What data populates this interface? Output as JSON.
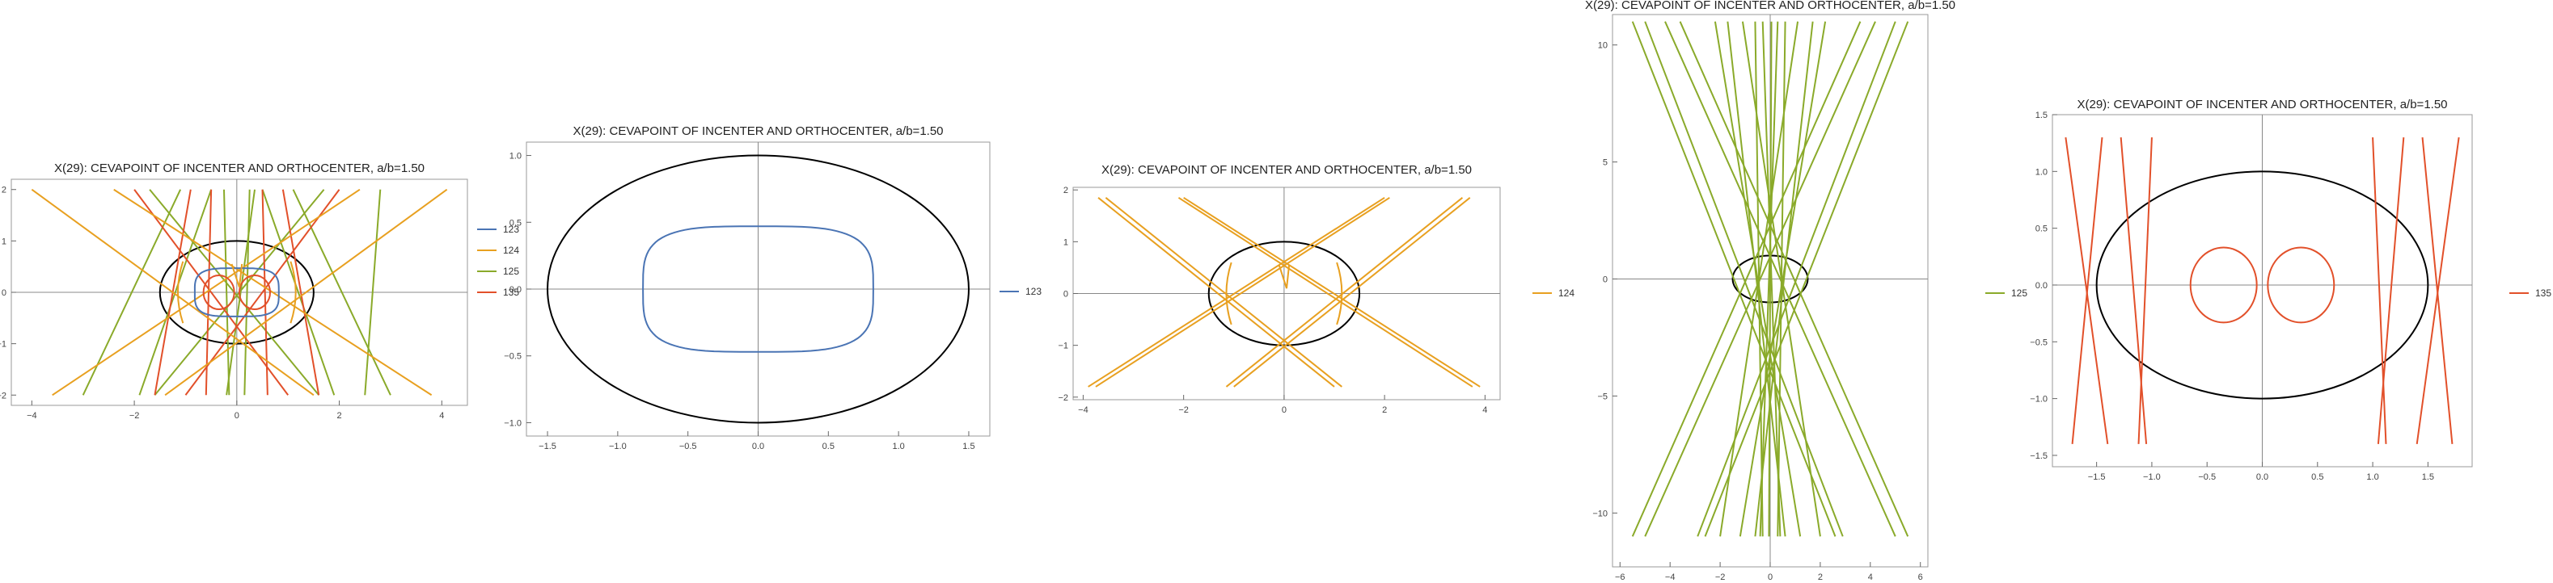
{
  "colors": {
    "s123": "#4a74b4",
    "s124": "#e8a020",
    "s125": "#8aaa2a",
    "s135": "#e2502a",
    "ellipse": "#000000",
    "frame": "#999999"
  },
  "chart_data": [
    {
      "type": "line",
      "title": "X(29): CEVAPOINT OF INCENTER AND ORTHOCENTER, a/b=1.50",
      "xlim": [
        -4.4,
        4.5
      ],
      "ylim": [
        -2.2,
        2.2
      ],
      "xticks": [
        -4,
        -2,
        0,
        2,
        4
      ],
      "yticks": [
        -2,
        -1,
        0,
        1,
        2
      ],
      "legend": [
        "123",
        "124",
        "125",
        "135"
      ],
      "legend_position": "right",
      "series": [
        "123",
        "124",
        "125",
        "135"
      ]
    },
    {
      "type": "line",
      "title": "X(29): CEVAPOINT OF INCENTER AND ORTHOCENTER, a/b=1.50",
      "xlim": [
        -1.65,
        1.65
      ],
      "ylim": [
        -1.1,
        1.1
      ],
      "xticks": [
        -1.5,
        -1.0,
        -0.5,
        0.0,
        0.5,
        1.0,
        1.5
      ],
      "yticks": [
        -1.0,
        -0.5,
        0.0,
        0.5,
        1.0
      ],
      "legend": [
        "123"
      ],
      "legend_position": "right",
      "series": [
        "123"
      ]
    },
    {
      "type": "line",
      "title": "X(29): CEVAPOINT OF INCENTER AND ORTHOCENTER, a/b=1.50",
      "xlim": [
        -4.2,
        4.3
      ],
      "ylim": [
        -2.05,
        2.05
      ],
      "xticks": [
        -4,
        -2,
        0,
        2,
        4
      ],
      "yticks": [
        -2,
        -1,
        0,
        1,
        2
      ],
      "legend": [
        "124"
      ],
      "legend_position": "right",
      "series": [
        "124"
      ]
    },
    {
      "type": "line",
      "title": "X(29): CEVAPOINT OF INCENTER AND ORTHOCENTER, a/b=1.50",
      "xlim": [
        -6.3,
        6.3
      ],
      "ylim": [
        -12.3,
        11.3
      ],
      "xticks": [
        -6,
        -4,
        -2,
        0,
        2,
        4,
        6
      ],
      "yticks": [
        -10,
        -5,
        0,
        5,
        10
      ],
      "legend": [
        "125"
      ],
      "legend_position": "left",
      "series": [
        "125"
      ]
    },
    {
      "type": "line",
      "title": "X(29): CEVAPOINT OF INCENTER AND ORTHOCENTER, a/b=1.50",
      "xlim": [
        -1.9,
        1.9
      ],
      "ylim": [
        -1.6,
        1.5
      ],
      "xticks": [
        -1.5,
        -1.0,
        -0.5,
        0.0,
        0.5,
        1.0,
        1.5
      ],
      "yticks": [
        -1.5,
        -1.0,
        -0.5,
        0.0,
        0.5,
        1.0,
        1.5
      ],
      "legend": [
        "135"
      ],
      "legend_position": "right",
      "series": [
        "135"
      ]
    }
  ]
}
